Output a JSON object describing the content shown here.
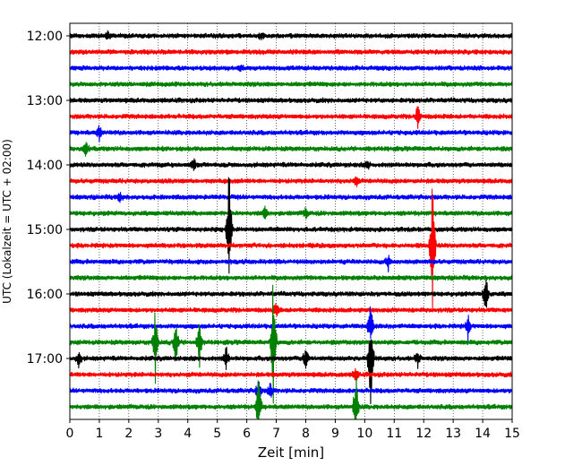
{
  "chart_data": {
    "type": "line",
    "xlabel": "Zeit  [min]",
    "ylabel": "UTC (Lokalzeit = UTC + 02:00)",
    "xlim": [
      0,
      15
    ],
    "x_ticks": [
      0,
      1,
      2,
      3,
      4,
      5,
      6,
      7,
      8,
      9,
      10,
      11,
      12,
      13,
      14,
      15
    ],
    "x_tick_labels": [
      "0",
      "1",
      "2",
      "3",
      "4",
      "5",
      "6",
      "7",
      "8",
      "9",
      "10",
      "11",
      "12",
      "13",
      "14",
      "15"
    ],
    "y_tick_labels": [
      "12:00",
      "13:00",
      "14:00",
      "15:00",
      "16:00",
      "17:00"
    ],
    "trace_interval_min": 15,
    "traces_per_hour": 4,
    "trace_color_cycle": [
      "#000000",
      "#ff0000",
      "#0000ff",
      "#008000"
    ],
    "grid": {
      "vertical": "dotted",
      "horizontal": false
    },
    "series": [
      {
        "start": "12:00",
        "color": "#000000",
        "events": [
          [
            1.3,
            0.35
          ],
          [
            6.5,
            0.4
          ]
        ]
      },
      {
        "start": "12:15",
        "color": "#ff0000",
        "events": []
      },
      {
        "start": "12:30",
        "color": "#0000ff",
        "events": [
          [
            5.8,
            0.3
          ]
        ]
      },
      {
        "start": "12:45",
        "color": "#008000",
        "events": []
      },
      {
        "start": "13:00",
        "color": "#000000",
        "events": []
      },
      {
        "start": "13:15",
        "color": "#ff0000",
        "events": [
          [
            11.8,
            1.0
          ]
        ]
      },
      {
        "start": "13:30",
        "color": "#0000ff",
        "events": [
          [
            1.0,
            0.5
          ]
        ]
      },
      {
        "start": "13:45",
        "color": "#008000",
        "events": [
          [
            0.55,
            0.6
          ]
        ]
      },
      {
        "start": "14:00",
        "color": "#000000",
        "events": [
          [
            4.2,
            0.45
          ],
          [
            10.1,
            0.3
          ]
        ]
      },
      {
        "start": "14:15",
        "color": "#ff0000",
        "events": [
          [
            9.7,
            0.4
          ]
        ]
      },
      {
        "start": "14:30",
        "color": "#0000ff",
        "events": [
          [
            1.7,
            0.35
          ]
        ]
      },
      {
        "start": "14:45",
        "color": "#008000",
        "events": [
          [
            6.6,
            0.5
          ],
          [
            8.0,
            0.35
          ]
        ]
      },
      {
        "start": "15:00",
        "color": "#000000",
        "events": [
          [
            5.4,
            4.4
          ]
        ]
      },
      {
        "start": "15:15",
        "color": "#ff0000",
        "events": [
          [
            12.3,
            5.0
          ]
        ]
      },
      {
        "start": "15:30",
        "color": "#0000ff",
        "events": [
          [
            10.8,
            0.6
          ]
        ]
      },
      {
        "start": "15:45",
        "color": "#008000",
        "events": []
      },
      {
        "start": "16:00",
        "color": "#000000",
        "events": [
          [
            14.1,
            1.6
          ]
        ]
      },
      {
        "start": "16:15",
        "color": "#ff0000",
        "events": [
          [
            7.0,
            0.5
          ]
        ]
      },
      {
        "start": "16:30",
        "color": "#0000ff",
        "events": [
          [
            10.2,
            1.6
          ],
          [
            13.5,
            0.8
          ]
        ]
      },
      {
        "start": "16:45",
        "color": "#008000",
        "events": [
          [
            2.9,
            2.5
          ],
          [
            3.6,
            2.0
          ],
          [
            4.4,
            1.6
          ],
          [
            6.9,
            5.0
          ]
        ]
      },
      {
        "start": "17:00",
        "color": "#000000",
        "events": [
          [
            0.3,
            0.6
          ],
          [
            5.3,
            0.9
          ],
          [
            8.0,
            1.1
          ],
          [
            10.2,
            3.6
          ],
          [
            11.8,
            0.6
          ]
        ]
      },
      {
        "start": "17:15",
        "color": "#ff0000",
        "events": [
          [
            9.7,
            0.5
          ]
        ]
      },
      {
        "start": "17:30",
        "color": "#0000ff",
        "events": [
          [
            6.4,
            1.0
          ],
          [
            6.8,
            0.6
          ]
        ]
      },
      {
        "start": "17:45",
        "color": "#008000",
        "events": [
          [
            6.4,
            2.2
          ],
          [
            9.7,
            2.4
          ]
        ]
      }
    ]
  }
}
